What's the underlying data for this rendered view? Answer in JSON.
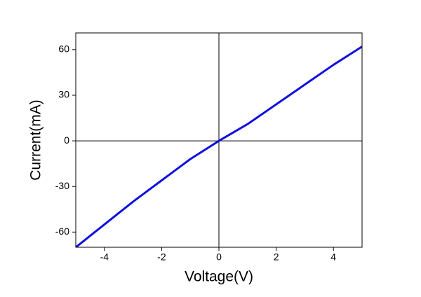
{
  "chart_data": {
    "type": "line",
    "x_label": "Voltage(V)",
    "y_label": "Current(mA)",
    "x": [
      -5,
      -4,
      -3,
      -2,
      -1,
      0,
      1,
      2,
      3,
      4,
      5
    ],
    "series": [
      {
        "color": "#1010e0",
        "values": [
          -70,
          -55,
          -40,
          -26,
          -12,
          0,
          11,
          24,
          37,
          50,
          62
        ]
      }
    ],
    "xlim": [
      -5,
      5
    ],
    "xticks": [
      -4,
      -2,
      0,
      2,
      4
    ],
    "ylim": [
      -70,
      71
    ],
    "yticks": [
      -60,
      -30,
      0,
      30,
      60
    ],
    "zero_lines": true
  }
}
